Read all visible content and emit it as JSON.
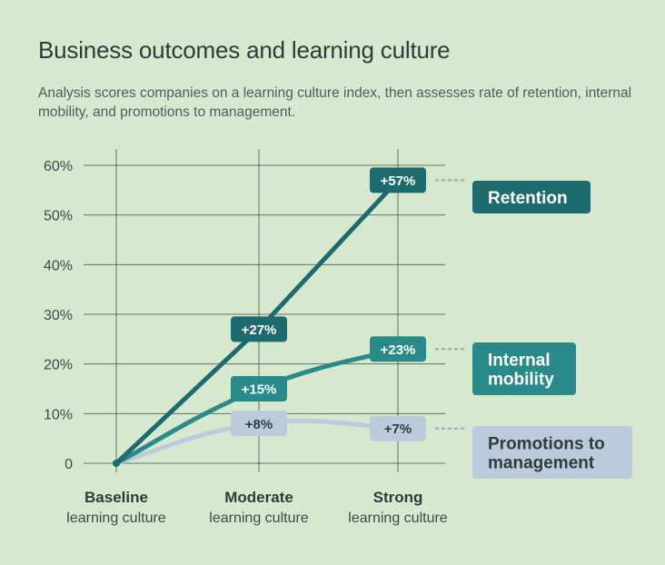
{
  "title": "Business outcomes and learning culture",
  "subtitle": "Analysis scores companies on a learning culture index, then assesses rate of retention, internal mobility, and promotions to management.",
  "colors": {
    "background": "#d6e8cd",
    "retention": "#1e6b6f",
    "internal_mobility": "#2a8a8a",
    "promotions": "#bccbdc",
    "grid": "#3f4a4a"
  },
  "chart_data": {
    "type": "line",
    "title": "Business outcomes and learning culture",
    "categories": [
      {
        "main": "Baseline",
        "sub": "learning culture"
      },
      {
        "main": "Moderate",
        "sub": "learning culture"
      },
      {
        "main": "Strong",
        "sub": "learning culture"
      }
    ],
    "y_ticks": [
      "0",
      "10%",
      "20%",
      "30%",
      "40%",
      "50%",
      "60%"
    ],
    "ylim": [
      0,
      60
    ],
    "grid": true,
    "legend": "right",
    "series": [
      {
        "key": "retention",
        "name": "Retention",
        "values": [
          0,
          27,
          57
        ],
        "labels": [
          "",
          "+27%",
          "+57%"
        ],
        "legend_lines": [
          "Retention"
        ]
      },
      {
        "key": "internal_mobility",
        "name": "Internal mobility",
        "values": [
          0,
          15,
          23
        ],
        "labels": [
          "",
          "+15%",
          "+23%"
        ],
        "legend_lines": [
          "Internal",
          "mobility"
        ]
      },
      {
        "key": "promotions",
        "name": "Promotions to management",
        "values": [
          0,
          8,
          7
        ],
        "labels": [
          "",
          "+8%",
          "+7%"
        ],
        "legend_lines": [
          "Promotions to",
          "management"
        ]
      }
    ]
  }
}
